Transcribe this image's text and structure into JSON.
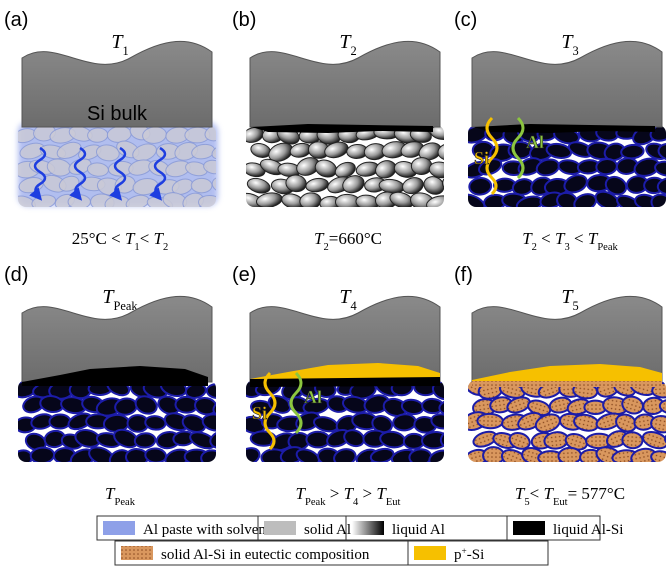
{
  "panels": [
    {
      "label": "(a)",
      "title": [
        {
          "t": "T",
          "i": true
        },
        {
          "t": "1",
          "sub": true
        }
      ],
      "bulk_label": "Si bulk",
      "caption": [
        {
          "t": "25°C < "
        },
        {
          "t": "T",
          "i": true
        },
        {
          "t": "1",
          "sub": true
        },
        {
          "t": "< "
        },
        {
          "t": "T",
          "i": true
        },
        {
          "t": "2",
          "sub": true
        }
      ]
    },
    {
      "label": "(b)",
      "title": [
        {
          "t": "T",
          "i": true
        },
        {
          "t": "2",
          "sub": true
        }
      ],
      "caption": [
        {
          "t": "T",
          "i": true
        },
        {
          "t": "2",
          "sub": true
        },
        {
          "t": "=660°C"
        }
      ]
    },
    {
      "label": "(c)",
      "title": [
        {
          "t": "T",
          "i": true
        },
        {
          "t": "3",
          "sub": true
        }
      ],
      "diffusion_labels": [
        "Si",
        "Al"
      ],
      "caption": [
        {
          "t": "T",
          "i": true
        },
        {
          "t": "2",
          "sub": true
        },
        {
          "t": " < "
        },
        {
          "t": "T",
          "i": true
        },
        {
          "t": "3",
          "sub": true
        },
        {
          "t": " < "
        },
        {
          "t": "T",
          "i": true
        },
        {
          "t": "Peak",
          "sub": true
        }
      ]
    },
    {
      "label": "(d)",
      "title": [
        {
          "t": "T",
          "i": true
        },
        {
          "t": "Peak",
          "sub": true
        }
      ],
      "caption": [
        {
          "t": "T",
          "i": true
        },
        {
          "t": "Peak",
          "sub": true
        }
      ]
    },
    {
      "label": "(e)",
      "title": [
        {
          "t": "T",
          "i": true
        },
        {
          "t": "4",
          "sub": true
        }
      ],
      "diffusion_labels": [
        "Si",
        "Al"
      ],
      "caption": [
        {
          "t": "T",
          "i": true
        },
        {
          "t": "Peak",
          "sub": true
        },
        {
          "t": " > "
        },
        {
          "t": "T",
          "i": true
        },
        {
          "t": "4",
          "sub": true
        },
        {
          "t": " > "
        },
        {
          "t": "T",
          "i": true
        },
        {
          "t": "Eut",
          "sub": true
        }
      ]
    },
    {
      "label": "(f)",
      "title": [
        {
          "t": "T",
          "i": true
        },
        {
          "t": "5",
          "sub": true
        }
      ],
      "caption": [
        {
          "t": "T",
          "i": true
        },
        {
          "t": "5",
          "sub": true
        },
        {
          "t": "< "
        },
        {
          "t": "T",
          "i": true
        },
        {
          "t": "Eut",
          "sub": true
        },
        {
          "t": "= 577°C"
        }
      ]
    }
  ],
  "legend": [
    [
      {
        "t": "Al paste with solvents"
      }
    ],
    [
      {
        "t": "solid Al"
      }
    ],
    [
      {
        "t": "liquid Al"
      }
    ],
    [
      {
        "t": "liquid Al-Si"
      }
    ],
    [
      {
        "t": "solid Al-Si in eutectic composition"
      }
    ],
    [
      {
        "t": "p"
      },
      {
        "t": "+",
        "sup": true
      },
      {
        "t": "-Si"
      }
    ]
  ]
}
